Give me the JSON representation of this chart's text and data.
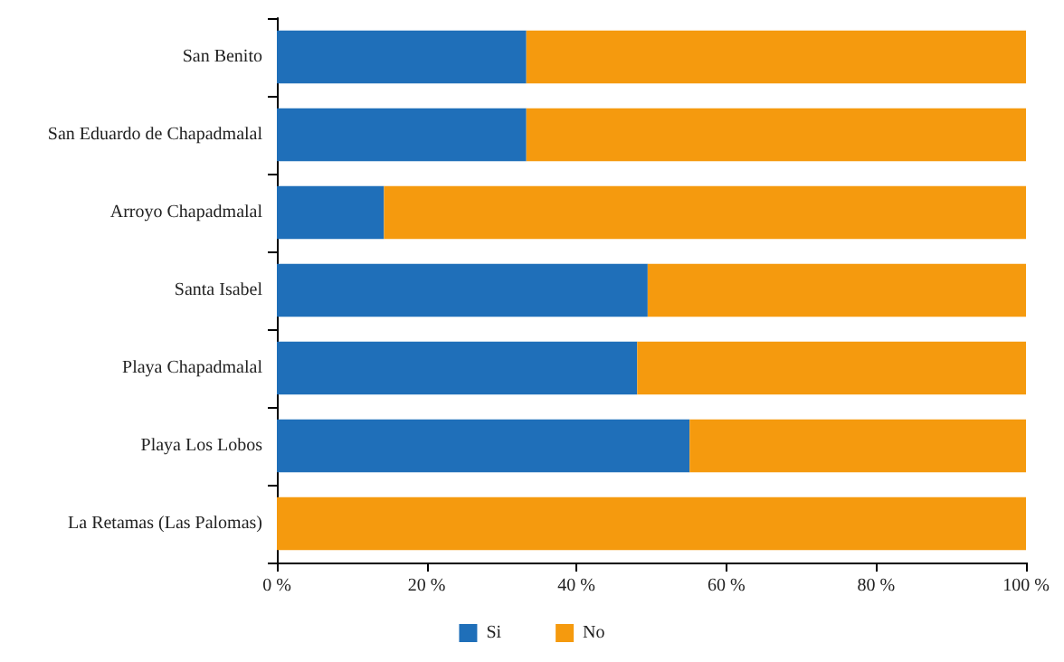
{
  "chart_data": {
    "type": "bar",
    "orientation": "horizontal",
    "stacked": true,
    "categories": [
      "San Benito",
      "San Eduardo de Chapadmalal",
      "Arroyo Chapadmalal",
      "Santa Isabel",
      "Playa Chapadmalal",
      "Playa Los Lobos",
      "La Retamas (Las Palomas)"
    ],
    "series": [
      {
        "name": "Si",
        "color": "#1f6fb9",
        "values": [
          33.3,
          33.3,
          14.3,
          49.5,
          48.1,
          55.1,
          0
        ]
      },
      {
        "name": "No",
        "color": "#f59a0e",
        "values": [
          66.7,
          66.7,
          85.7,
          50.5,
          51.9,
          44.9,
          100
        ]
      }
    ],
    "xlim": [
      0,
      100
    ],
    "xticks": [
      {
        "value": 0,
        "label": "0 %"
      },
      {
        "value": 20,
        "label": "20 %"
      },
      {
        "value": 40,
        "label": "40 %"
      },
      {
        "value": 60,
        "label": "60 %"
      },
      {
        "value": 80,
        "label": "80 %"
      },
      {
        "value": 100,
        "label": "100 %"
      }
    ],
    "grid": false,
    "legend": "bottom"
  }
}
